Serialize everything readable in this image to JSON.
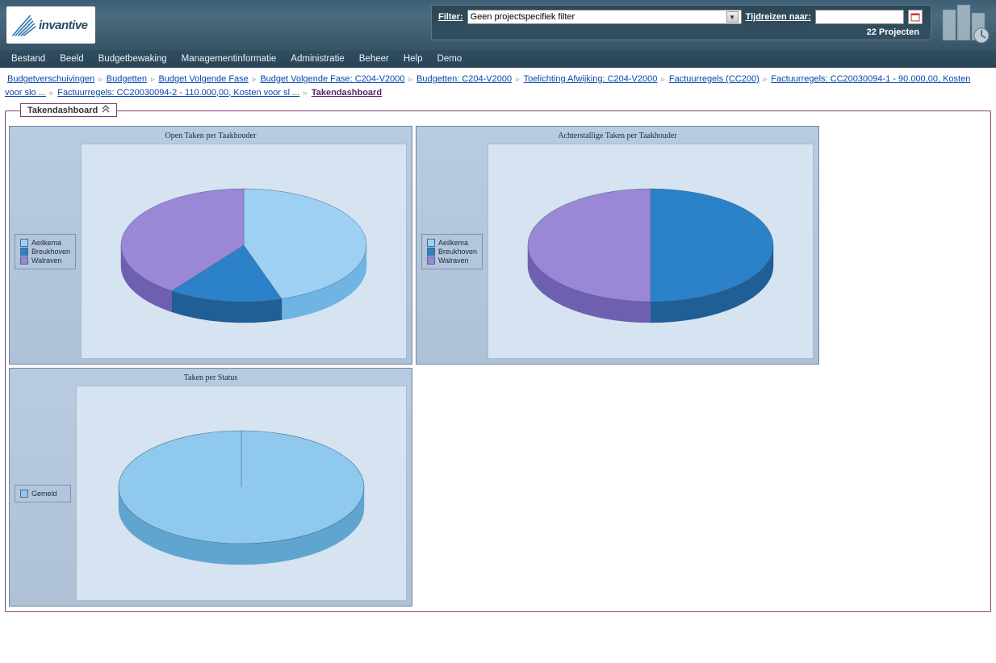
{
  "brand": {
    "name": "invantive"
  },
  "header": {
    "filter_label": "Filter:",
    "filter_value": "Geen projectspecifiek filter",
    "tijdreizen_label": "Tijdreizen naar:",
    "tijdreizen_value": "",
    "project_count": "22 Projecten"
  },
  "menu": [
    "Bestand",
    "Beeld",
    "Budgetbewaking",
    "Managementinformatie",
    "Administratie",
    "Beheer",
    "Help",
    "Demo"
  ],
  "breadcrumbs": [
    "Budgetverschuivingen",
    "Budgetten",
    "Budget Volgende Fase",
    "Budget Volgende Fase: C204-V2000",
    "Budgetten: C204-V2000",
    "Toelichting Afwijking: C204-V2000",
    "Factuurregels (CC200)",
    "Factuurregels: CC20030094-1 - 90.000,00, Kosten voor slo ...",
    "Factuurregels: CC20030094-2 - 110.000,00, Kosten voor sl ..."
  ],
  "breadcrumb_current": "Takendashboard",
  "dashboard_title": "Takendashboard",
  "colors": {
    "panel_border": "#7a3f75",
    "chart_bg": "#d6e3f1",
    "chart_panel_bg_top": "#b9cbe0",
    "chart_panel_bg_bottom": "#aec1d7",
    "aeilkema": "#9ed0f4",
    "aeilkema_dark": "#6fb4e2",
    "breukhoven": "#2b82c9",
    "breukhoven_dark": "#1f5f96",
    "walraven": "#9a87d6",
    "walraven_dark": "#6f5fb0",
    "gemeld": "#8fc9ed",
    "gemeld_dark": "#5fa5d0"
  },
  "charts": [
    {
      "id": "open-taken",
      "title": "Open Taken per Taakhouder",
      "type": "pie3d",
      "legend": [
        {
          "label": "Aeilkema",
          "color": "#9ed0f4"
        },
        {
          "label": "Breukhoven",
          "color": "#2b82c9"
        },
        {
          "label": "Walraven",
          "color": "#9a87d6"
        }
      ],
      "slices": [
        {
          "label": "Aeilkema",
          "value": 45,
          "color": "#9ed0f4",
          "dark": "#6fb4e2"
        },
        {
          "label": "Breukhoven",
          "value": 15,
          "color": "#2b82c9",
          "dark": "#1f5f96"
        },
        {
          "label": "Walraven",
          "value": 40,
          "color": "#9a87d6",
          "dark": "#6f5fb0"
        }
      ]
    },
    {
      "id": "achterstallig",
      "title": "Achterstallige Taken per Taakhouder",
      "type": "pie3d",
      "legend": [
        {
          "label": "Aeilkema",
          "color": "#9ed0f4"
        },
        {
          "label": "Breukhoven",
          "color": "#2b82c9"
        },
        {
          "label": "Walraven",
          "color": "#9a87d6"
        }
      ],
      "slices": [
        {
          "label": "Breukhoven",
          "value": 50,
          "color": "#2b82c9",
          "dark": "#1f5f96"
        },
        {
          "label": "Walraven",
          "value": 50,
          "color": "#9a87d6",
          "dark": "#6f5fb0"
        }
      ]
    },
    {
      "id": "status",
      "title": "Taken per Status",
      "type": "pie3d",
      "legend": [
        {
          "label": "Gemeld",
          "color": "#8fc9ed"
        }
      ],
      "slices": [
        {
          "label": "Gemeld",
          "value": 100,
          "color": "#8fc9ed",
          "dark": "#5fa5d0"
        }
      ]
    }
  ]
}
